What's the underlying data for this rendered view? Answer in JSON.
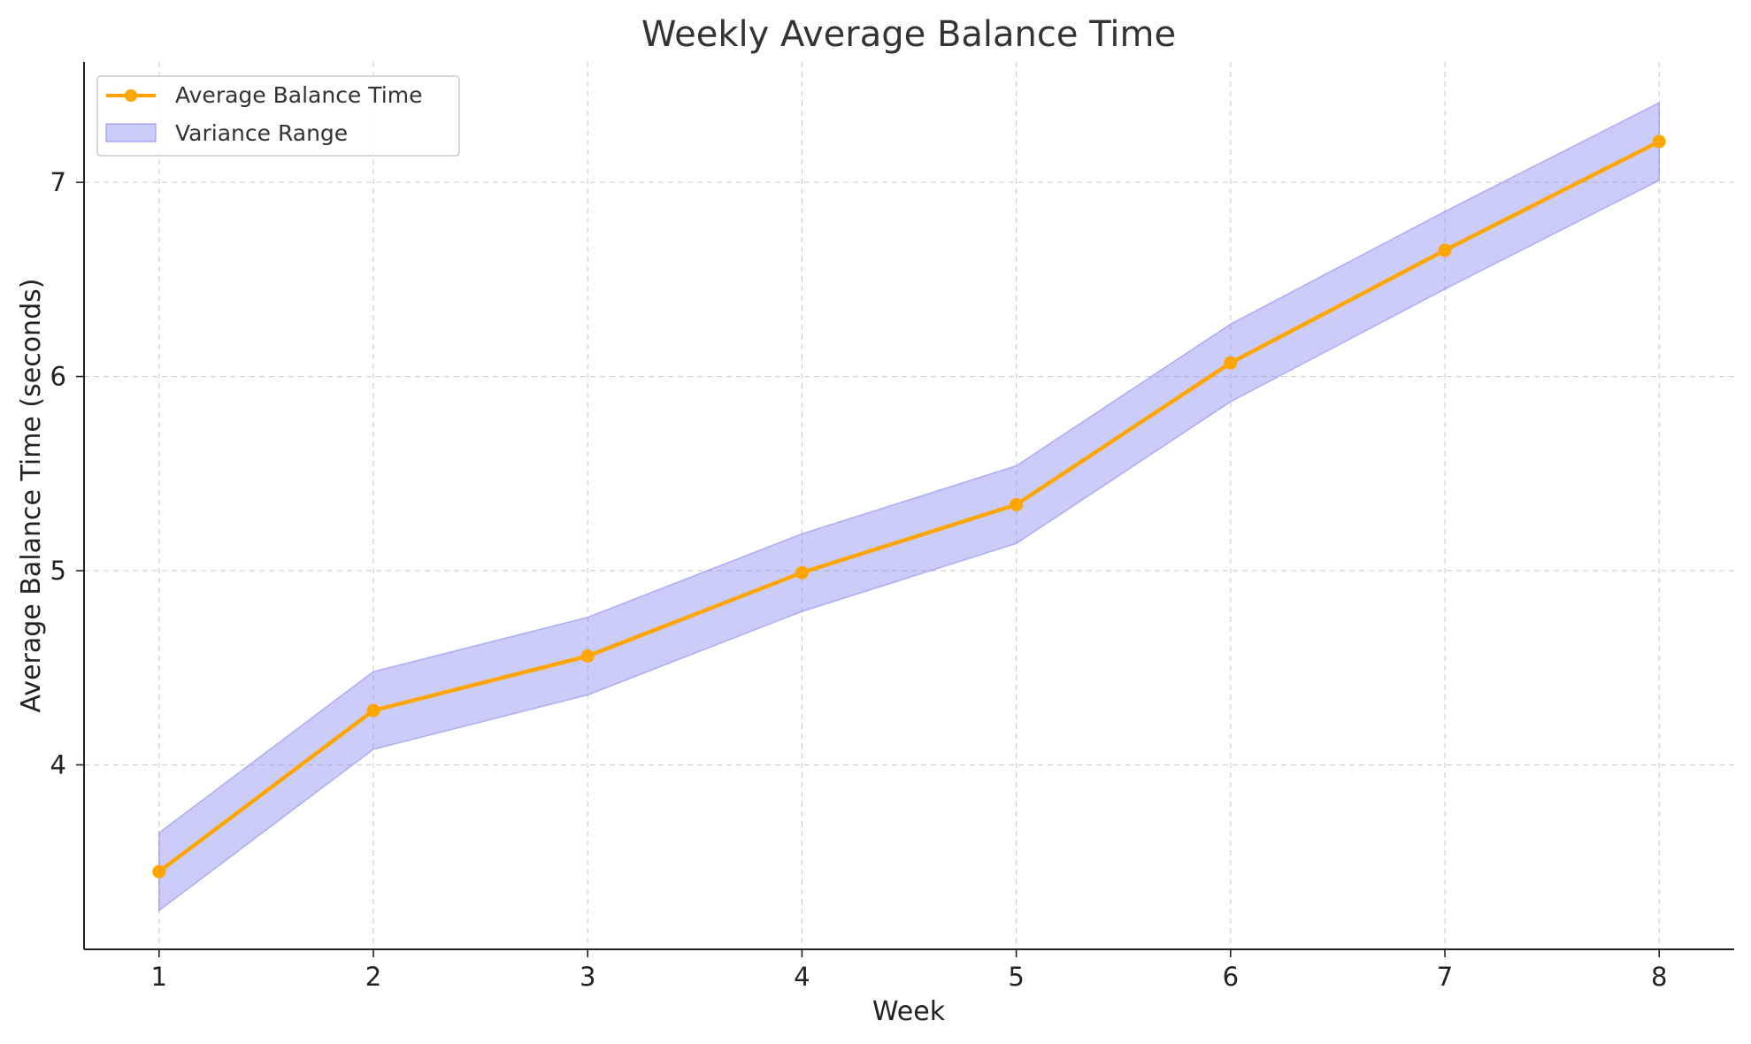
{
  "chart_data": {
    "type": "line",
    "title": "Weekly Average Balance Time",
    "xlabel": "Week",
    "ylabel": "Average Balance Time (seconds)",
    "x": [
      1,
      2,
      3,
      4,
      5,
      6,
      7,
      8
    ],
    "xticks": [
      "1",
      "2",
      "3",
      "4",
      "5",
      "6",
      "7",
      "8"
    ],
    "yticks": [
      "4",
      "5",
      "6",
      "7"
    ],
    "xlim": [
      0.65,
      8.35
    ],
    "ylim": [
      3.05,
      7.62
    ],
    "grid": true,
    "legend_position": "top-left",
    "series": [
      {
        "name": "Average Balance Time",
        "kind": "line",
        "color": "#FFA500",
        "marker": "circle",
        "values": [
          3.45,
          4.28,
          4.56,
          4.99,
          5.34,
          6.07,
          6.65,
          7.21
        ]
      },
      {
        "name": "Variance Range",
        "kind": "band",
        "color": "#8080f0",
        "lower": [
          3.25,
          4.08,
          4.36,
          4.79,
          5.14,
          5.87,
          6.45,
          7.01
        ],
        "upper": [
          3.65,
          4.48,
          4.76,
          5.19,
          5.54,
          6.27,
          6.85,
          7.41
        ]
      }
    ]
  }
}
